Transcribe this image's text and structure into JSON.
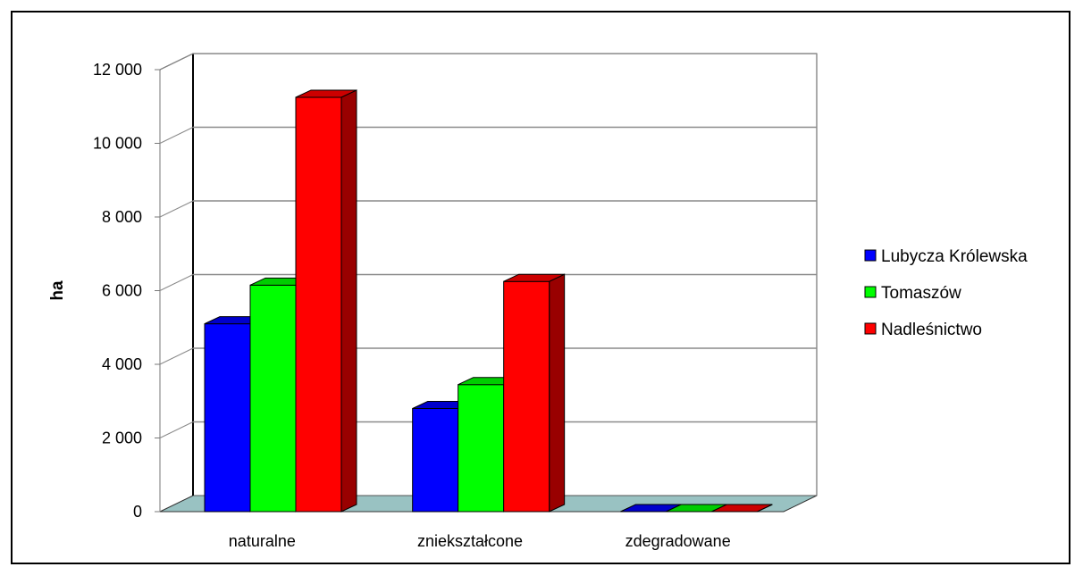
{
  "chart_data": {
    "type": "bar",
    "categories": [
      "naturalne",
      "zniekształcone",
      "zdegradowane"
    ],
    "series": [
      {
        "name": "Lubycza Królewska",
        "values": [
          5100,
          2800,
          0
        ],
        "color": "#0000ff"
      },
      {
        "name": "Tomaszów",
        "values": [
          6150,
          3450,
          0
        ],
        "color": "#00ff00"
      },
      {
        "name": "Nadleśnictwo",
        "values": [
          11250,
          6250,
          0
        ],
        "color": "#ff0000"
      }
    ],
    "ylabel": "ha",
    "ylim": [
      0,
      12000
    ],
    "yticks": [
      0,
      2000,
      4000,
      6000,
      8000,
      10000,
      12000
    ],
    "ytick_labels": [
      "0",
      "2 000",
      "4 000",
      "6 000",
      "8 000",
      "10 000",
      "12 000"
    ],
    "grid": true,
    "legend": "right",
    "floor_color": "#99c2c2"
  }
}
